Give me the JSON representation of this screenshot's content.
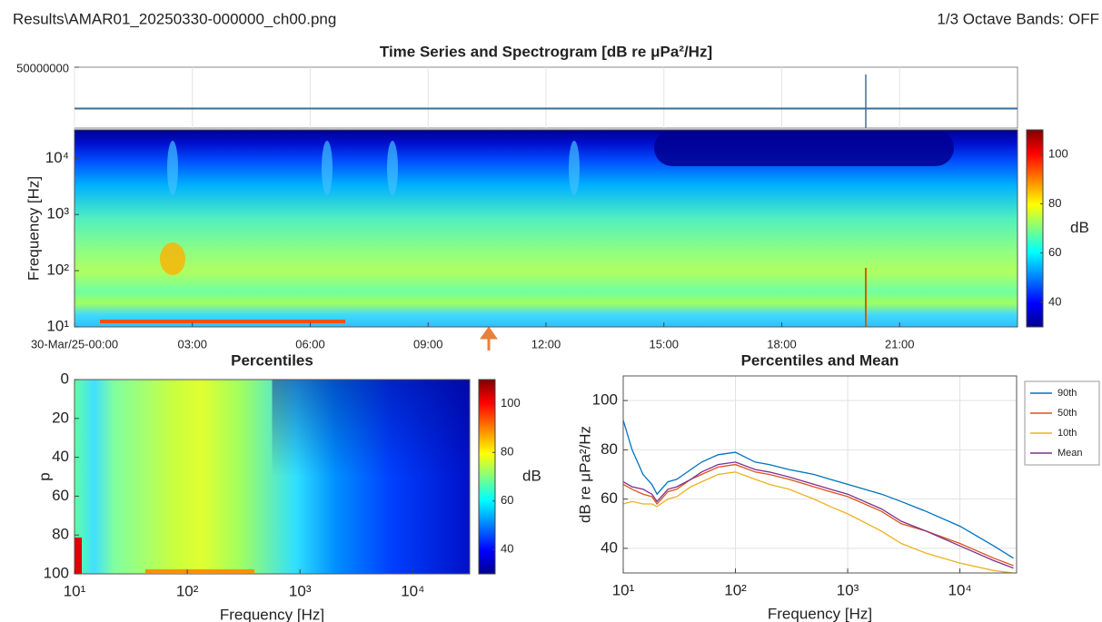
{
  "header": {
    "file": "Results\\AMAR01_20250330-000000_ch00.png",
    "octave_bands": "1/3 Octave Bands: OFF"
  },
  "chart_data": [
    {
      "type": "heatmap",
      "title": "Time Series and Spectrogram [dB re μPa²/Hz]",
      "ylabel": "Frequency [Hz]",
      "colormap": "jet",
      "xlim": [
        0,
        24
      ],
      "xticks": [
        {
          "value": 0,
          "label": "30-Mar/25-00:00"
        },
        {
          "value": 3,
          "label": "03:00"
        },
        {
          "value": 6,
          "label": "06:00"
        },
        {
          "value": 9,
          "label": "09:00"
        },
        {
          "value": 12,
          "label": "12:00"
        },
        {
          "value": 15,
          "label": "15:00"
        },
        {
          "value": 18,
          "label": "18:00"
        },
        {
          "value": 21,
          "label": "21:00"
        }
      ],
      "y_scale": "log",
      "ylim": [
        10,
        32000
      ],
      "yticks": [
        {
          "value": 10,
          "label": "10¹"
        },
        {
          "value": 100,
          "label": "10²"
        },
        {
          "value": 1000,
          "label": "10³"
        },
        {
          "value": 10000,
          "label": "10⁴"
        }
      ],
      "colorbar": {
        "label": "dB",
        "lim": [
          30,
          110
        ],
        "ticks": [
          40,
          60,
          80,
          100
        ]
      },
      "time_series": {
        "ylim": [
          -50000000,
          50000000
        ],
        "yticks": [
          50000000
        ]
      }
    },
    {
      "type": "heatmap",
      "title": "Percentiles",
      "xlabel": "Frequency [Hz]",
      "ylabel": "p",
      "colormap": "jet",
      "x_scale": "log",
      "xlim": [
        10,
        32000
      ],
      "xticks": [
        {
          "value": 10,
          "label": "10¹"
        },
        {
          "value": 100,
          "label": "10²"
        },
        {
          "value": 1000,
          "label": "10³"
        },
        {
          "value": 10000,
          "label": "10⁴"
        }
      ],
      "ylim": [
        0,
        100
      ],
      "y_reverse": true,
      "yticks": [
        0,
        20,
        40,
        60,
        80,
        100
      ],
      "colorbar": {
        "label": "dB",
        "lim": [
          30,
          110
        ],
        "ticks": [
          40,
          60,
          80,
          100
        ]
      }
    },
    {
      "type": "line",
      "title": "Percentiles and Mean",
      "xlabel": "Frequency [Hz]",
      "ylabel": "dB re μPa²/Hz",
      "grid": true,
      "legend": "outside-right",
      "x_scale": "log",
      "xlim": [
        10,
        32000
      ],
      "xticks": [
        {
          "value": 10,
          "label": "10¹"
        },
        {
          "value": 100,
          "label": "10²"
        },
        {
          "value": 1000,
          "label": "10³"
        },
        {
          "value": 10000,
          "label": "10⁴"
        }
      ],
      "ylim": [
        30,
        110
      ],
      "yticks": [
        40,
        60,
        80,
        100
      ],
      "x": [
        10,
        12,
        15,
        18,
        20,
        25,
        30,
        40,
        50,
        70,
        100,
        150,
        200,
        300,
        500,
        700,
        1000,
        2000,
        3000,
        5000,
        10000,
        20000,
        30000
      ],
      "series": [
        {
          "name": "90th",
          "color": "#0072bd",
          "values": [
            92,
            80,
            70,
            66,
            62,
            67,
            68,
            72,
            75,
            78,
            79,
            75,
            74,
            72,
            70,
            68,
            66,
            62,
            59,
            55,
            49,
            41,
            36
          ]
        },
        {
          "name": "50th",
          "color": "#d95319",
          "values": [
            66,
            64,
            62,
            61,
            58,
            63,
            64,
            68,
            70,
            73,
            74,
            71,
            70,
            68,
            65,
            63,
            61,
            55,
            50,
            47,
            42,
            36,
            33
          ]
        },
        {
          "name": "10th",
          "color": "#edb120",
          "values": [
            58,
            59,
            58,
            58,
            57,
            60,
            61,
            65,
            67,
            70,
            71,
            68,
            66,
            64,
            60,
            57,
            54,
            47,
            42,
            38,
            34,
            31,
            30
          ]
        },
        {
          "name": "Mean",
          "color": "#7e2f8e",
          "values": [
            67,
            65,
            64,
            62,
            59,
            64,
            65,
            68,
            71,
            74,
            75,
            72,
            71,
            69,
            66,
            64,
            62,
            56,
            51,
            47,
            41,
            35,
            32
          ]
        }
      ]
    }
  ]
}
